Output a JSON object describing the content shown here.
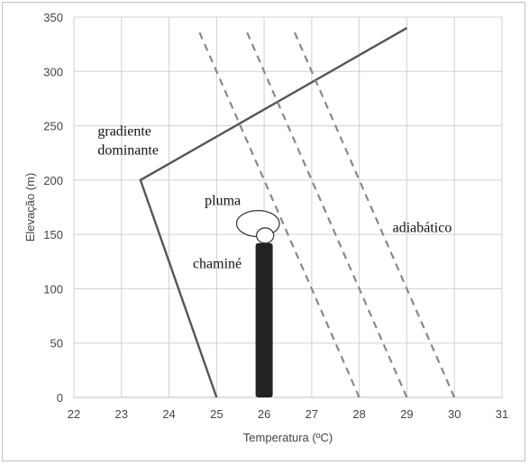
{
  "chart_data": {
    "type": "line",
    "xlabel": "Temperatura (ºC)",
    "ylabel": "Elevação (m)",
    "xlim": [
      22,
      31
    ],
    "ylim": [
      0,
      350
    ],
    "x_ticks": [
      22,
      23,
      24,
      25,
      26,
      27,
      28,
      29,
      30,
      31
    ],
    "y_ticks": [
      0,
      50,
      100,
      150,
      200,
      250,
      300,
      350
    ],
    "grid": true,
    "series": [
      {
        "style": "solid",
        "color": "#555555",
        "points": [
          [
            25,
            0
          ],
          [
            23.4,
            200
          ],
          [
            29,
            340
          ]
        ]
      },
      {
        "style": "dashed",
        "color": "#888888",
        "points": [
          [
            28,
            0
          ],
          [
            24.6,
            340
          ]
        ]
      },
      {
        "style": "dashed",
        "color": "#888888",
        "points": [
          [
            29,
            0
          ],
          [
            25.6,
            340
          ]
        ]
      },
      {
        "style": "dashed",
        "color": "#888888",
        "points": [
          [
            30,
            0
          ],
          [
            26.6,
            340
          ]
        ]
      }
    ],
    "chimney": {
      "x_center": 26,
      "x_width": 0.36,
      "y_top": 142,
      "color": "#222222"
    },
    "plume": [
      {
        "cx": 25.87,
        "cy": 160,
        "rx": 0.45,
        "ry": 12
      },
      {
        "cx": 26.02,
        "cy": 149,
        "rx": 0.18,
        "ry": 7
      }
    ],
    "annotations": [
      {
        "lines": [
          "gradiente",
          "dominante"
        ],
        "x": 22.5,
        "y": 241
      },
      {
        "lines": [
          "pluma"
        ],
        "x": 24.75,
        "y": 177
      },
      {
        "lines": [
          "chaminé"
        ],
        "x": 24.5,
        "y": 119
      },
      {
        "lines": [
          "adiabático"
        ],
        "x": 28.7,
        "y": 152
      }
    ]
  }
}
